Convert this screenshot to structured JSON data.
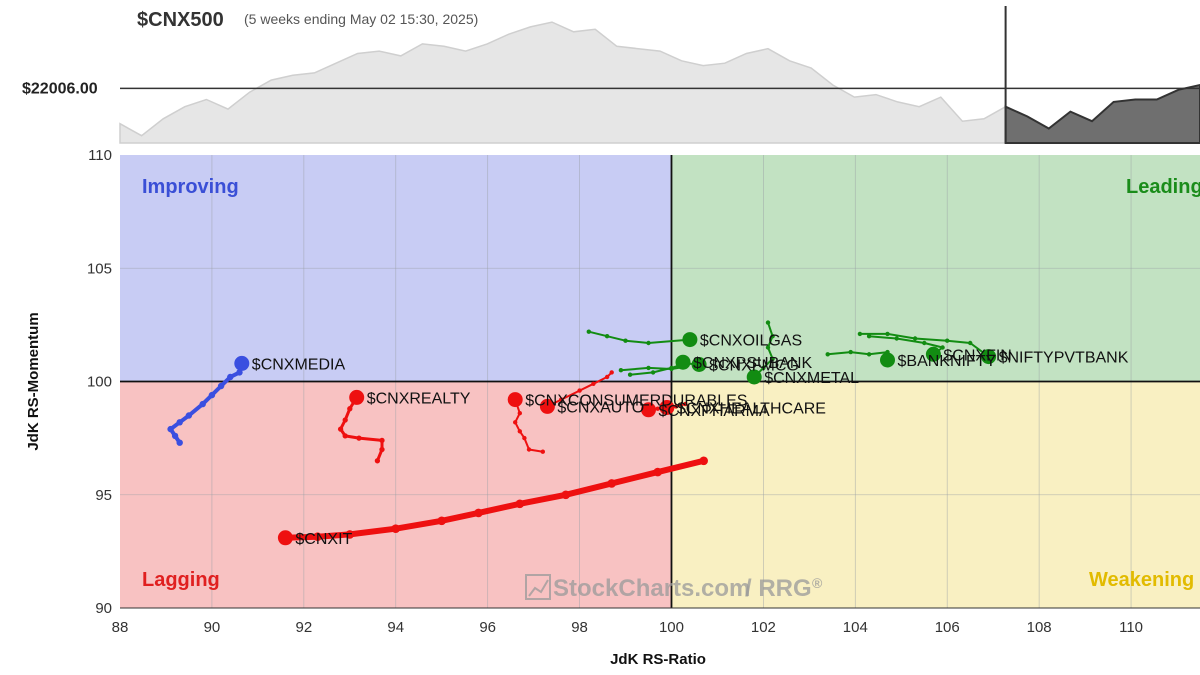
{
  "header": {
    "symbol": "$CNX500",
    "subtitle": "(5 weeks ending May 02 15:30, 2025)",
    "price_label": "$22006.00"
  },
  "watermark": {
    "text": "StockCharts.com",
    "suffix": "/ RRG",
    "reg": "®"
  },
  "colors": {
    "improving": "#c8ccf4",
    "leading": "#c2e2c2",
    "lagging": "#f8c2c2",
    "weakening": "#f9f0c2",
    "improving_text": "#3a4fd6",
    "leading_text": "#1a8c1a",
    "lagging_text": "#e02020",
    "weakening_text": "#e2bb00",
    "blue": "#3a4fe0",
    "green": "#128c12",
    "red": "#ee1010"
  },
  "chart_data": [
    {
      "type": "area",
      "title": "$CNX500",
      "subtitle": "(5 weeks ending May 02 15:30, 2025)",
      "reference_price": 22006.0,
      "note_current_window_start_index": 41,
      "values": [
        21860,
        21810,
        21880,
        21930,
        21960,
        21920,
        21990,
        22040,
        22060,
        22070,
        22110,
        22150,
        22160,
        22140,
        22190,
        22180,
        22160,
        22190,
        22230,
        22260,
        22280,
        22240,
        22250,
        22180,
        22170,
        22160,
        22120,
        22100,
        22110,
        22150,
        22170,
        22120,
        22090,
        22020,
        21970,
        21980,
        21950,
        21930,
        21970,
        21870,
        21880,
        21930,
        21890,
        21840,
        21910,
        21870,
        21950,
        21960,
        21960,
        22000,
        22020
      ],
      "ylim": [
        21780,
        22330
      ]
    },
    {
      "type": "scatter",
      "title": "",
      "xlabel": "JdK RS-Ratio",
      "ylabel": "JdK RS-Momentum",
      "xlim": [
        88,
        111.5
      ],
      "ylim": [
        90,
        110
      ],
      "xticks": [
        88,
        90,
        92,
        94,
        96,
        98,
        100,
        102,
        104,
        106,
        108,
        110
      ],
      "xtick_labels": [
        "88",
        "90",
        "92",
        "94",
        "96",
        "98",
        "100",
        "102",
        "104",
        "106",
        "108",
        "110"
      ],
      "yticks": [
        90,
        95,
        100,
        105,
        110
      ],
      "quadrants": [
        "Improving",
        "Leading",
        "Lagging",
        "Weakening"
      ],
      "center": [
        100,
        100
      ],
      "series": [
        {
          "name": "$CNXMEDIA",
          "color": "blue",
          "width": 4,
          "points": [
            [
              89.3,
              97.3
            ],
            [
              89.2,
              97.6
            ],
            [
              89.1,
              97.9
            ],
            [
              89.3,
              98.2
            ],
            [
              89.5,
              98.5
            ],
            [
              89.8,
              99.0
            ],
            [
              90.0,
              99.4
            ],
            [
              90.2,
              99.8
            ],
            [
              90.4,
              100.2
            ],
            [
              90.6,
              100.4
            ],
            [
              90.65,
              100.8
            ]
          ]
        },
        {
          "name": "$CNXREALTY",
          "color": "red",
          "width": 3,
          "points": [
            [
              93.6,
              96.5
            ],
            [
              93.7,
              97.0
            ],
            [
              93.7,
              97.4
            ],
            [
              93.2,
              97.5
            ],
            [
              92.9,
              97.6
            ],
            [
              92.8,
              97.9
            ],
            [
              92.9,
              98.3
            ],
            [
              93.0,
              98.8
            ],
            [
              93.15,
              99.3
            ]
          ]
        },
        {
          "name": "$CNXCONSUMERDURABLES",
          "color": "red",
          "width": 2,
          "points": [
            [
              97.2,
              96.9
            ],
            [
              96.9,
              97.0
            ],
            [
              96.8,
              97.5
            ],
            [
              96.7,
              97.8
            ],
            [
              96.6,
              98.2
            ],
            [
              96.7,
              98.6
            ],
            [
              96.6,
              99.2
            ]
          ]
        },
        {
          "name": "$CNXAUTO",
          "color": "red",
          "width": 2,
          "points": [
            [
              98.7,
              100.4
            ],
            [
              98.6,
              100.2
            ],
            [
              98.3,
              99.9
            ],
            [
              98.0,
              99.6
            ],
            [
              97.6,
              99.2
            ],
            [
              97.3,
              98.9
            ]
          ]
        },
        {
          "name": "$CNXPHARMA",
          "color": "red",
          "width": 2,
          "points": [
            [
              99.9,
              98.9
            ],
            [
              99.7,
              98.8
            ],
            [
              99.5,
              98.75
            ]
          ]
        },
        {
          "name": "$CNXHEALTHCARE",
          "color": "red",
          "width": 2,
          "points": [
            [
              100.3,
              99.0
            ],
            [
              100.1,
              98.9
            ],
            [
              99.9,
              98.85
            ]
          ]
        },
        {
          "name": "$CNXIT",
          "color": "red",
          "width": 6,
          "points": [
            [
              100.7,
              96.5
            ],
            [
              99.7,
              96.0
            ],
            [
              98.7,
              95.5
            ],
            [
              97.7,
              95.0
            ],
            [
              96.7,
              94.6
            ],
            [
              95.8,
              94.2
            ],
            [
              95.0,
              93.85
            ],
            [
              94.0,
              93.5
            ],
            [
              93.0,
              93.25
            ],
            [
              92.3,
              93.15
            ],
            [
              91.6,
              93.1
            ]
          ]
        },
        {
          "name": "$CNXOILGAS",
          "color": "green",
          "width": 2,
          "points": [
            [
              98.2,
              102.2
            ],
            [
              98.6,
              102.0
            ],
            [
              99.0,
              101.8
            ],
            [
              99.5,
              101.7
            ],
            [
              100.4,
              101.85
            ]
          ]
        },
        {
          "name": "$CNXFMCG",
          "color": "green",
          "width": 2,
          "points": [
            [
              99.1,
              100.3
            ],
            [
              99.6,
              100.4
            ],
            [
              100.0,
              100.6
            ],
            [
              100.3,
              100.8
            ],
            [
              100.6,
              100.75
            ]
          ]
        },
        {
          "name": "$CNXMETAL",
          "color": "green",
          "width": 2,
          "points": [
            [
              102.1,
              102.6
            ],
            [
              102.2,
              102.0
            ],
            [
              102.1,
              101.5
            ],
            [
              102.2,
              101.0
            ],
            [
              102.0,
              100.6
            ],
            [
              101.8,
              100.2
            ]
          ]
        },
        {
          "name": "$BANKNIFTY",
          "color": "green",
          "width": 2,
          "points": [
            [
              103.4,
              101.2
            ],
            [
              103.9,
              101.3
            ],
            [
              104.3,
              101.2
            ],
            [
              104.7,
              101.3
            ],
            [
              104.7,
              100.95
            ]
          ]
        },
        {
          "name": "$CNXPSUBANK",
          "color": "green",
          "width": 2,
          "points": [
            [
              98.9,
              100.5
            ],
            [
              99.5,
              100.6
            ],
            [
              100.0,
              100.55
            ],
            [
              100.3,
              100.65
            ],
            [
              100.25,
              100.85
            ]
          ]
        },
        {
          "name": "$NIFTYPVTBANK",
          "color": "green",
          "width": 2,
          "points": [
            [
              104.1,
              102.1
            ],
            [
              104.7,
              102.1
            ],
            [
              105.3,
              101.9
            ],
            [
              106.0,
              101.8
            ],
            [
              106.5,
              101.7
            ],
            [
              106.9,
              101.1
            ]
          ]
        },
        {
          "name": "$CNXFIN",
          "color": "green",
          "width": 2,
          "points": [
            [
              104.3,
              102.0
            ],
            [
              104.9,
              101.9
            ],
            [
              105.5,
              101.7
            ],
            [
              105.9,
              101.5
            ],
            [
              105.7,
              101.2
            ]
          ]
        }
      ]
    }
  ]
}
